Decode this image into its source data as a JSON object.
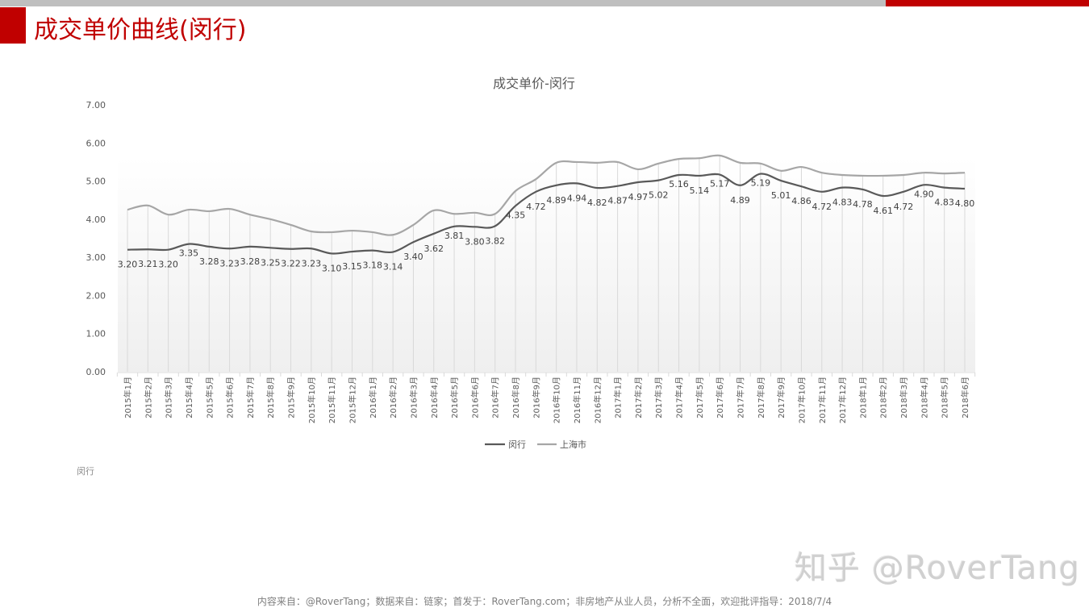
{
  "page": {
    "title": "成交单价曲线(闵行)",
    "accent_color": "#c00000",
    "topbar_grey": "#bfbfbf",
    "footnote_label": "闵行",
    "watermark": "知乎 @RoverTang",
    "footer": "内容来自：@RoverTang；数据来自：链家；首发于：RoverTang.com；非房地产从业人员，分析不全面，欢迎批评指导：2018/7/4"
  },
  "chart_data": {
    "type": "line",
    "title": "成交单价-闵行",
    "xlabel": "",
    "ylabel": "",
    "ylim": [
      0,
      7
    ],
    "yticks": [
      "0.00",
      "1.00",
      "2.00",
      "3.00",
      "4.00",
      "5.00",
      "6.00",
      "7.00"
    ],
    "grid": "vertical",
    "smooth": true,
    "legend_position": "bottom",
    "categories": [
      "2015年1月",
      "2015年2月",
      "2015年3月",
      "2015年4月",
      "2015年5月",
      "2015年6月",
      "2015年7月",
      "2015年8月",
      "2015年9月",
      "2015年10月",
      "2015年11月",
      "2015年12月",
      "2016年1月",
      "2016年2月",
      "2016年3月",
      "2016年4月",
      "2016年5月",
      "2016年6月",
      "2016年7月",
      "2016年8月",
      "2016年9月",
      "2016年10月",
      "2016年11月",
      "2016年12月",
      "2017年1月",
      "2017年2月",
      "2017年3月",
      "2017年4月",
      "2017年5月",
      "2017年6月",
      "2017年7月",
      "2017年8月",
      "2017年9月",
      "2017年10月",
      "2017年11月",
      "2017年12月",
      "2018年1月",
      "2018年2月",
      "2018年3月",
      "2018年4月",
      "2018年5月",
      "2018年6月"
    ],
    "series": [
      {
        "name": "闵行",
        "color": "#595959",
        "data_labels": true,
        "values": [
          3.2,
          3.21,
          3.2,
          3.35,
          3.28,
          3.23,
          3.28,
          3.25,
          3.22,
          3.23,
          3.1,
          3.15,
          3.18,
          3.14,
          3.4,
          3.62,
          3.81,
          3.8,
          3.82,
          4.35,
          4.72,
          4.89,
          4.94,
          4.82,
          4.87,
          4.97,
          5.02,
          5.16,
          5.14,
          5.17,
          4.89,
          5.19,
          5.01,
          4.86,
          4.72,
          4.83,
          4.78,
          4.61,
          4.72,
          4.9,
          4.83,
          4.8
        ]
      },
      {
        "name": "上海市",
        "color": "#a6a6a6",
        "data_labels": false,
        "values": [
          4.25,
          4.36,
          4.12,
          4.25,
          4.21,
          4.27,
          4.12,
          4.0,
          3.85,
          3.68,
          3.66,
          3.7,
          3.66,
          3.59,
          3.85,
          4.23,
          4.14,
          4.17,
          4.14,
          4.74,
          5.05,
          5.48,
          5.5,
          5.48,
          5.5,
          5.31,
          5.46,
          5.58,
          5.6,
          5.67,
          5.48,
          5.46,
          5.27,
          5.37,
          5.22,
          5.16,
          5.14,
          5.14,
          5.16,
          5.22,
          5.2,
          5.22
        ]
      }
    ],
    "label_offsets": [
      1,
      1,
      1,
      -1,
      1,
      1,
      1,
      1,
      1,
      1,
      1,
      1,
      1,
      1,
      1,
      1,
      -1,
      1,
      1,
      -1,
      1,
      1,
      1,
      1,
      1,
      1,
      1,
      -1,
      1,
      -1,
      1,
      -1,
      1,
      1,
      1,
      1,
      1,
      1,
      1,
      -1,
      1,
      1
    ]
  }
}
